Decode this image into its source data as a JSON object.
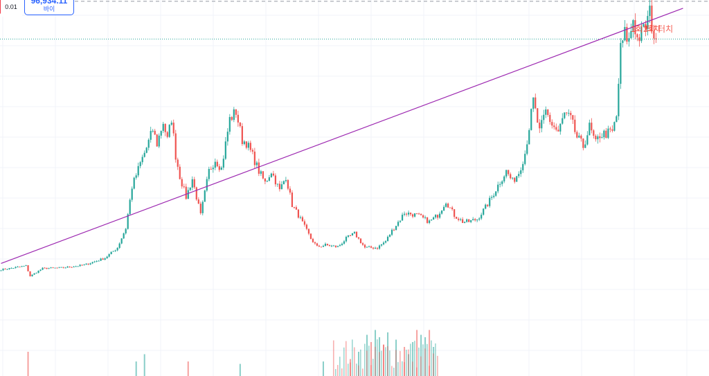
{
  "order_panel": {
    "spread": "0.01",
    "buy_price": "96,934.11",
    "buy_label": "바이"
  },
  "annotation": {
    "text_1": "1회 터치",
    "text_2": "2회 터치"
  },
  "colors": {
    "up": "#26a69a",
    "down": "#ef5350",
    "trendline": "#9c27b0",
    "grid": "#f0f3fa",
    "dotted_line": "#26a69a",
    "dashed_line": "#9598a1",
    "annotation": "#f44336",
    "buy": "#2962ff",
    "sell": "#f23645"
  },
  "chart_data": {
    "type": "candlestick",
    "x_unit": "bar index",
    "trendline": {
      "from": {
        "x": 0,
        "y": 10400
      },
      "to": {
        "x": 328,
        "y": 108800
      },
      "label": ""
    },
    "price_lines": [
      {
        "kind": "dashed",
        "price": 111500
      },
      {
        "kind": "dotted",
        "price": 96934.11
      }
    ],
    "ylim": [
      -33000,
      112000
    ],
    "xlim": [
      0,
      341
    ],
    "anchors": [
      [
        0,
        8000
      ],
      [
        12,
        9500
      ],
      [
        14,
        5500
      ],
      [
        20,
        8500
      ],
      [
        30,
        8800
      ],
      [
        40,
        9800
      ],
      [
        50,
        12500
      ],
      [
        56,
        16500
      ],
      [
        60,
        24000
      ],
      [
        63,
        40000
      ],
      [
        67,
        49000
      ],
      [
        70,
        55000
      ],
      [
        73,
        62000
      ],
      [
        75,
        56500
      ],
      [
        78,
        65000
      ],
      [
        80,
        58000
      ],
      [
        82,
        66500
      ],
      [
        84,
        52000
      ],
      [
        86,
        44000
      ],
      [
        89,
        36000
      ],
      [
        92,
        43000
      ],
      [
        96,
        29000
      ],
      [
        100,
        46000
      ],
      [
        103,
        50500
      ],
      [
        106,
        47000
      ],
      [
        110,
        66000
      ],
      [
        113,
        69000
      ],
      [
        116,
        58000
      ],
      [
        118,
        57000
      ],
      [
        121,
        52000
      ],
      [
        124,
        46000
      ],
      [
        127,
        41500
      ],
      [
        130,
        46000
      ],
      [
        134,
        38500
      ],
      [
        137,
        44000
      ],
      [
        140,
        33000
      ],
      [
        143,
        29000
      ],
      [
        146,
        24500
      ],
      [
        149,
        20000
      ],
      [
        152,
        16800
      ],
      [
        156,
        17500
      ],
      [
        162,
        16800
      ],
      [
        166,
        20000
      ],
      [
        170,
        22000
      ],
      [
        175,
        16500
      ],
      [
        181,
        16500
      ],
      [
        185,
        19000
      ],
      [
        188,
        23000
      ],
      [
        192,
        27500
      ],
      [
        194,
        30000
      ],
      [
        200,
        29000
      ],
      [
        206,
        26500
      ],
      [
        210,
        29000
      ],
      [
        214,
        34500
      ],
      [
        218,
        29000
      ],
      [
        222,
        26500
      ],
      [
        225,
        26500
      ],
      [
        229,
        27500
      ],
      [
        233,
        32000
      ],
      [
        236,
        36000
      ],
      [
        240,
        42000
      ],
      [
        243,
        46000
      ],
      [
        246,
        42000
      ],
      [
        249,
        45500
      ],
      [
        252,
        53000
      ],
      [
        254,
        63000
      ],
      [
        256,
        73000
      ],
      [
        259,
        61000
      ],
      [
        262,
        69000
      ],
      [
        265,
        64000
      ],
      [
        268,
        61000
      ],
      [
        271,
        68000
      ],
      [
        274,
        66000
      ],
      [
        277,
        59000
      ],
      [
        280,
        55500
      ],
      [
        283,
        63000
      ],
      [
        286,
        56500
      ],
      [
        288,
        60000
      ],
      [
        291,
        60500
      ],
      [
        294,
        61000
      ],
      [
        296,
        67000
      ],
      [
        298,
        93000
      ],
      [
        300,
        99000
      ],
      [
        302,
        96000
      ],
      [
        304,
        105000
      ],
      [
        306,
        97000
      ],
      [
        308,
        99000
      ],
      [
        310,
        102000
      ],
      [
        312,
        107000
      ],
      [
        314,
        98500
      ],
      [
        315,
        96934
      ]
    ],
    "volume_spikes": [
      [
        13,
        0.5
      ],
      [
        65,
        0.3
      ],
      [
        69,
        0.45
      ],
      [
        90,
        0.3
      ],
      [
        115,
        0.25
      ],
      [
        155,
        0.3
      ],
      [
        168,
        0.35
      ],
      [
        172,
        0.5
      ],
      [
        176,
        0.85
      ],
      [
        178,
        0.7
      ],
      [
        180,
        0.95
      ],
      [
        182,
        0.8
      ],
      [
        184,
        0.65
      ],
      [
        186,
        0.9
      ],
      [
        190,
        0.75
      ],
      [
        194,
        0.6
      ],
      [
        196,
        0.45
      ],
      [
        198,
        0.7
      ],
      [
        200,
        0.95
      ],
      [
        202,
        0.85
      ],
      [
        204,
        0.8
      ],
      [
        206,
        0.95
      ],
      [
        208,
        0.6
      ]
    ]
  }
}
